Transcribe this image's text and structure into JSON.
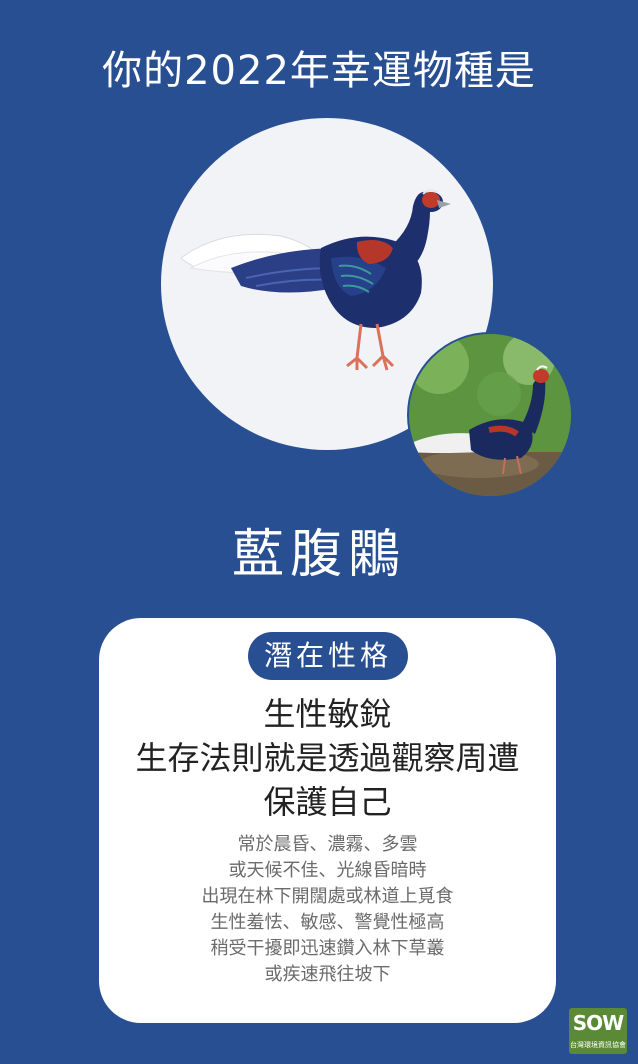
{
  "header": {
    "title": "你的2022年幸運物種是"
  },
  "species": {
    "name": "藍腹鷴"
  },
  "card": {
    "tag": "潛在性格",
    "headline": [
      "生性敏銳",
      "生存法則就是透過觀察周遭",
      "保護自己"
    ],
    "description": [
      "常於晨昏、濃霧、多雲",
      "或天候不佳、光線昏暗時",
      "出現在林下開闊處或林道上覓食",
      "生性羞怯、敏感、警覺性極高",
      "稍受干擾即迅速鑽入林下草叢",
      "或疾速飛往坡下"
    ]
  },
  "logo": {
    "text": "SOW",
    "subtext": "台灣環境資訊協會"
  },
  "colors": {
    "background": "#294f93",
    "card": "#ffffff",
    "pill": "#294f93",
    "bird_blue": "#1e2f6e",
    "bird_red": "#b5372a"
  },
  "icons": {
    "illustration": "swinhoe-pheasant-illustration",
    "photo": "swinhoe-pheasant-photo"
  }
}
